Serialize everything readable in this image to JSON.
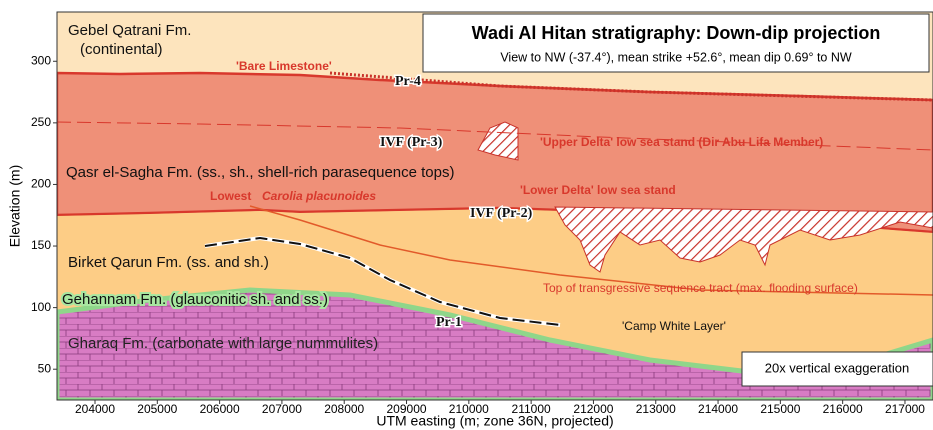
{
  "chart_data": {
    "type": "cross-section",
    "title": "Wadi Al Hitan stratigraphy:  Down-dip projection",
    "subtitle": "View to NW (-37.4°), mean strike +52.6°, mean dip 0.69° to NW",
    "x_label": "UTM easting (m; zone 36N, projected)",
    "y_label": "Elevation (m)",
    "xlim": [
      203390,
      217450
    ],
    "ylim": [
      25,
      340
    ],
    "xticks": [
      204000,
      205000,
      206000,
      207000,
      208000,
      209000,
      210000,
      211000,
      212000,
      213000,
      214000,
      215000,
      216000,
      217000
    ],
    "yticks": [
      50,
      100,
      150,
      200,
      250,
      300
    ],
    "note": "20x vertical exaggeration",
    "annotations": [
      "Gebel Qatrani Fm.",
      "(continental)",
      "'Bare Limestone'",
      "Pr-4",
      "IVF (Pr-3)",
      "'Upper Delta' low sea stand (Dir Abu Lifa Member)",
      "Qasr el-Sagha Fm. (ss., sh., shell-rich parasequence tops)",
      "Lowest",
      "Carolia placunoides",
      "'Lower Delta' low sea stand",
      "IVF (Pr-2)",
      "Birket Qarun Fm. (ss. and sh.)",
      "Top of transgressive sequence tract (max. flooding surface)",
      "Gehannam Fm. (glauconitic sh. and ss.)",
      "Pr-1",
      "'Camp White Layer'",
      "Gharaq Fm. (carbonate with large nummulites)"
    ]
  }
}
